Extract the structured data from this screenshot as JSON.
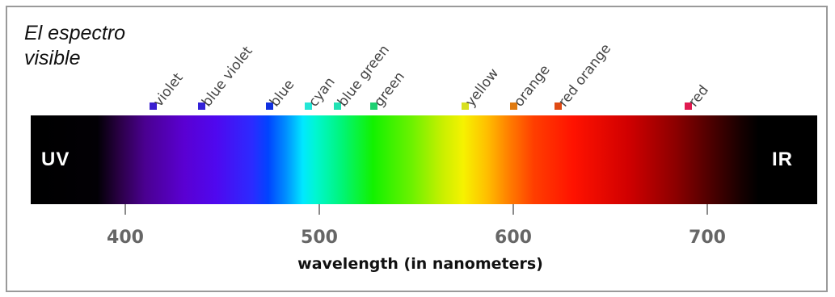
{
  "title": {
    "line1": "El espectro",
    "line2": "visible"
  },
  "bar_labels": {
    "left": "UV",
    "right": "IR"
  },
  "axis": {
    "xlabel": "wavelength (in nanometers)",
    "ticks": [
      {
        "value": 400,
        "label": "400"
      },
      {
        "value": 500,
        "label": "500"
      },
      {
        "value": 600,
        "label": "600"
      },
      {
        "value": 700,
        "label": "700"
      }
    ],
    "range_nm": [
      350,
      755
    ]
  },
  "colors": [
    {
      "name": "violet",
      "nm": 414,
      "swatch": "#3a1fd0"
    },
    {
      "name": "blue violet",
      "nm": 439,
      "swatch": "#3322d8"
    },
    {
      "name": "blue",
      "nm": 474,
      "swatch": "#1030e0"
    },
    {
      "name": "cyan",
      "nm": 494,
      "swatch": "#24e6d6"
    },
    {
      "name": "blue green",
      "nm": 509,
      "swatch": "#22e2b4"
    },
    {
      "name": "green",
      "nm": 528,
      "swatch": "#1ed072"
    },
    {
      "name": "yellow",
      "nm": 575,
      "swatch": "#d8e020"
    },
    {
      "name": "orange",
      "nm": 600,
      "swatch": "#e07a10"
    },
    {
      "name": "red orange",
      "nm": 623,
      "swatch": "#e04a14"
    },
    {
      "name": "red",
      "nm": 690,
      "swatch": "#e01a50"
    }
  ]
}
